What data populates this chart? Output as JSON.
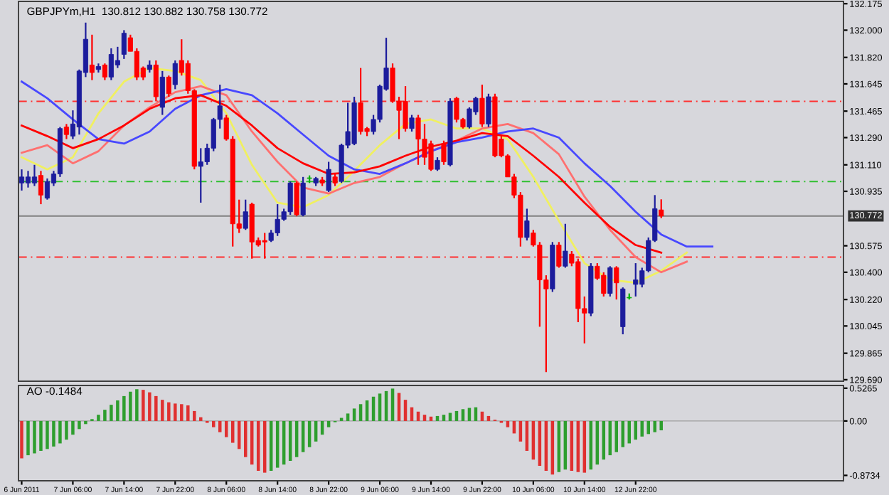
{
  "chart_data": [
    {
      "type": "candlestick",
      "title": "GBPJPYm,H1  130.812 130.882 130.758 130.772",
      "categories": [
        null,
        null,
        null,
        null,
        null,
        null,
        null,
        null,
        null,
        null,
        null,
        null,
        null,
        null,
        null,
        null,
        null,
        null,
        null,
        null,
        null,
        null,
        null,
        null,
        null,
        null,
        null,
        null,
        null,
        null,
        null,
        null,
        null,
        null,
        null,
        null,
        null,
        null,
        null,
        null,
        null,
        null,
        null,
        null,
        null,
        null,
        null,
        null,
        null,
        null,
        null,
        null,
        null,
        null,
        null,
        null,
        null,
        null,
        null,
        null,
        null,
        null,
        null,
        null,
        null,
        null,
        null,
        null,
        null,
        null,
        null,
        null,
        null,
        null,
        null,
        null,
        null,
        null,
        null,
        null,
        null,
        null,
        null,
        null,
        null,
        null,
        null,
        null,
        null,
        null,
        null,
        null,
        null,
        null,
        null,
        null,
        null,
        null,
        null,
        null,
        null,
        null,
        null,
        null,
        null,
        null,
        null,
        null,
        null,
        null,
        null,
        null,
        null,
        null,
        null,
        null,
        null,
        null,
        null,
        null,
        null,
        null,
        null,
        null,
        null,
        null,
        null,
        null,
        null
      ],
      "ohlc": [
        [
          130.99,
          131.08,
          130.94,
          131.03
        ],
        [
          130.99,
          131.07,
          130.96,
          131.03
        ],
        [
          130.99,
          131.11,
          130.97,
          131.03
        ],
        [
          131.04,
          131.07,
          130.85,
          130.91
        ],
        [
          130.89,
          131.02,
          130.88,
          131.0
        ],
        [
          130.99,
          131.07,
          130.97,
          131.05
        ],
        [
          131.05,
          131.36,
          131.03,
          131.35
        ],
        [
          131.36,
          131.38,
          131.28,
          131.31
        ],
        [
          131.3,
          131.47,
          131.28,
          131.38
        ],
        [
          131.36,
          131.74,
          131.31,
          131.73
        ],
        [
          131.72,
          132.05,
          131.69,
          131.94
        ],
        [
          131.77,
          131.97,
          131.67,
          131.72
        ],
        [
          131.74,
          131.78,
          131.72,
          131.76
        ],
        [
          131.77,
          131.78,
          131.67,
          131.69
        ],
        [
          131.69,
          131.88,
          131.67,
          131.84
        ],
        [
          131.77,
          131.89,
          131.75,
          131.8
        ],
        [
          131.84,
          132.0,
          131.81,
          131.98
        ],
        [
          131.95,
          131.97,
          131.86,
          131.86
        ],
        [
          131.86,
          131.88,
          131.67,
          131.69
        ],
        [
          131.75,
          131.76,
          131.67,
          131.69
        ],
        [
          131.74,
          131.8,
          131.72,
          131.77
        ],
        [
          131.77,
          131.8,
          131.53,
          131.56
        ],
        [
          131.49,
          131.73,
          131.44,
          131.69
        ],
        [
          131.69,
          131.7,
          131.56,
          131.58
        ],
        [
          131.64,
          131.8,
          131.61,
          131.78
        ],
        [
          131.8,
          131.94,
          131.7,
          131.72
        ],
        [
          131.78,
          131.8,
          131.58,
          131.6
        ],
        [
          131.6,
          131.61,
          131.08,
          131.1
        ],
        [
          131.1,
          131.22,
          130.86,
          131.13
        ],
        [
          131.13,
          131.25,
          131.11,
          131.22
        ],
        [
          131.22,
          131.42,
          131.2,
          131.41
        ],
        [
          131.41,
          131.64,
          131.35,
          131.5
        ],
        [
          131.42,
          131.44,
          131.27,
          131.28
        ],
        [
          131.28,
          131.3,
          130.57,
          130.72
        ],
        [
          130.72,
          130.88,
          130.66,
          130.69
        ],
        [
          130.69,
          130.88,
          130.68,
          130.8
        ],
        [
          130.85,
          130.86,
          130.49,
          130.6
        ],
        [
          130.61,
          130.63,
          130.57,
          130.58
        ],
        [
          130.61,
          130.66,
          130.49,
          130.6
        ],
        [
          130.61,
          130.68,
          130.6,
          130.66
        ],
        [
          130.66,
          130.85,
          130.64,
          130.75
        ],
        [
          130.75,
          130.82,
          130.74,
          130.8
        ],
        [
          130.8,
          131.0,
          130.78,
          130.99
        ],
        [
          130.99,
          131.0,
          130.77,
          130.78
        ],
        [
          130.78,
          131.03,
          130.77,
          130.99
        ],
        [
          131.02,
          131.04,
          130.99,
          131.02
        ],
        [
          130.99,
          131.03,
          130.97,
          131.02
        ],
        [
          131.01,
          131.03,
          130.97,
          130.99
        ],
        [
          130.94,
          131.13,
          130.93,
          131.08
        ],
        [
          131.03,
          131.05,
          130.97,
          130.99
        ],
        [
          131.0,
          131.25,
          130.99,
          131.24
        ],
        [
          131.24,
          131.52,
          131.22,
          131.33
        ],
        [
          131.25,
          131.56,
          131.24,
          131.52
        ],
        [
          131.52,
          131.75,
          131.31,
          131.33
        ],
        [
          131.35,
          131.36,
          131.3,
          131.33
        ],
        [
          131.33,
          131.44,
          131.31,
          131.41
        ],
        [
          131.41,
          131.64,
          131.39,
          131.63
        ],
        [
          131.61,
          131.95,
          131.6,
          131.75
        ],
        [
          131.75,
          131.78,
          131.52,
          131.53
        ],
        [
          131.53,
          131.56,
          131.28,
          131.47
        ],
        [
          131.53,
          131.63,
          131.33,
          131.35
        ],
        [
          131.35,
          131.44,
          131.33,
          131.42
        ],
        [
          131.42,
          131.44,
          131.11,
          131.28
        ],
        [
          131.28,
          131.38,
          131.11,
          131.16
        ],
        [
          131.25,
          131.27,
          131.07,
          131.08
        ],
        [
          131.08,
          131.16,
          131.07,
          131.14
        ],
        [
          131.25,
          131.27,
          131.11,
          131.13
        ],
        [
          131.11,
          131.55,
          131.1,
          131.53
        ],
        [
          131.55,
          131.56,
          131.39,
          131.41
        ],
        [
          131.41,
          131.42,
          131.35,
          131.36
        ],
        [
          131.36,
          131.49,
          131.35,
          131.48
        ],
        [
          131.46,
          131.56,
          131.44,
          131.55
        ],
        [
          131.55,
          131.64,
          131.36,
          131.38
        ],
        [
          131.38,
          131.58,
          131.36,
          131.56
        ],
        [
          131.56,
          131.58,
          131.16,
          131.17
        ],
        [
          131.28,
          131.3,
          131.16,
          131.17
        ],
        [
          131.17,
          131.18,
          131.03,
          131.03
        ],
        [
          131.03,
          131.05,
          130.89,
          130.91
        ],
        [
          130.91,
          130.93,
          130.57,
          130.63
        ],
        [
          130.63,
          130.82,
          130.61,
          130.74
        ],
        [
          130.66,
          130.68,
          130.57,
          130.58
        ],
        [
          130.58,
          130.6,
          130.04,
          130.35
        ],
        [
          130.35,
          130.38,
          129.74,
          130.29
        ],
        [
          130.29,
          130.6,
          130.27,
          130.58
        ],
        [
          130.58,
          130.6,
          130.43,
          130.44
        ],
        [
          130.44,
          130.72,
          130.43,
          130.54
        ],
        [
          130.52,
          130.54,
          130.44,
          130.46
        ],
        [
          130.47,
          130.49,
          130.07,
          130.16
        ],
        [
          130.16,
          130.24,
          129.93,
          130.13
        ],
        [
          130.13,
          130.46,
          130.11,
          130.44
        ],
        [
          130.44,
          130.46,
          130.35,
          130.36
        ],
        [
          130.38,
          130.4,
          130.24,
          130.26
        ],
        [
          130.26,
          130.44,
          130.24,
          130.43
        ],
        [
          130.43,
          130.44,
          130.22,
          130.33
        ],
        [
          130.04,
          130.3,
          129.99,
          130.29
        ],
        [
          130.23,
          130.26,
          130.22,
          130.23
        ],
        [
          130.32,
          130.46,
          130.24,
          130.35
        ],
        [
          130.32,
          130.43,
          130.3,
          130.41
        ],
        [
          130.41,
          130.63,
          130.4,
          130.61
        ],
        [
          130.61,
          130.91,
          130.6,
          130.82
        ],
        [
          130.812,
          130.882,
          130.758,
          130.772
        ],
        null,
        null,
        null,
        null,
        null,
        null,
        null,
        null,
        null,
        null,
        null,
        null,
        null,
        null,
        null,
        null,
        null,
        null,
        null,
        null,
        null,
        null,
        null,
        null,
        null,
        null,
        null,
        null
      ],
      "colors": [
        "#1c1c9c",
        "#1c1c9c",
        "#1c1c9c",
        "#ff0000",
        "#1c1c9c",
        "#1c1c9c",
        "#1c1c9c",
        "#ff0000",
        "#1c1c9c",
        "#1c1c9c",
        "#1c1c9c",
        "#ff0000",
        "#1c1c9c",
        "#ff0000",
        "#1c1c9c",
        "#1c1c9c",
        "#1c1c9c",
        "#ff0000",
        "#ff0000",
        "#ff0000",
        "#1c1c9c",
        "#ff0000",
        "#1c1c9c",
        "#ff0000",
        "#1c1c9c",
        "#ff0000",
        "#ff0000",
        "#ff0000",
        "#1c1c9c",
        "#1c1c9c",
        "#1c1c9c",
        "#1c1c9c",
        "#ff0000",
        "#ff0000",
        "#ff0000",
        "#1c1c9c",
        "#ff0000",
        "#ff0000",
        "#ff0000",
        "#1c1c9c",
        "#1c1c9c",
        "#1c1c9c",
        "#1c1c9c",
        "#ff0000",
        "#1c1c9c",
        "#00b000",
        "#1c1c9c",
        "#ff0000",
        "#1c1c9c",
        "#ff0000",
        "#1c1c9c",
        "#1c1c9c",
        "#1c1c9c",
        "#ff0000",
        "#ff0000",
        "#1c1c9c",
        "#1c1c9c",
        "#1c1c9c",
        "#ff0000",
        "#ff0000",
        "#ff0000",
        "#1c1c9c",
        "#ff0000",
        "#ff0000",
        "#ff0000",
        "#1c1c9c",
        "#ff0000",
        "#1c1c9c",
        "#ff0000",
        "#ff0000",
        "#1c1c9c",
        "#1c1c9c",
        "#ff0000",
        "#1c1c9c",
        "#ff0000",
        "#ff0000",
        "#ff0000",
        "#ff0000",
        "#ff0000",
        "#1c1c9c",
        "#ff0000",
        "#ff0000",
        "#ff0000",
        "#1c1c9c",
        "#ff0000",
        "#1c1c9c",
        "#ff0000",
        "#ff0000",
        "#ff0000",
        "#1c1c9c",
        "#ff0000",
        "#ff0000",
        "#1c1c9c",
        "#ff0000",
        "#1c1c9c",
        "#00b000",
        "#1c1c9c",
        "#1c1c9c",
        "#1c1c9c",
        "#1c1c9c",
        "#ff0000",
        null,
        null,
        null,
        null,
        null,
        null,
        null,
        null,
        null,
        null,
        null,
        null,
        null,
        null,
        null,
        null,
        null,
        null,
        null,
        null,
        null,
        null,
        null,
        null,
        null,
        null,
        null,
        null
      ],
      "series": [
        {
          "type": "line",
          "color": "#f0f060",
          "values": [
            131.16,
            null,
            null,
            null,
            131.08,
            null,
            null,
            null,
            131.16,
            null,
            null,
            null,
            131.45,
            null,
            null,
            null,
            131.66,
            null,
            null,
            null,
            131.75,
            null,
            null,
            null,
            131.73,
            null,
            null,
            null,
            131.67,
            null,
            null,
            null,
            131.45,
            null,
            null,
            null,
            131.11,
            null,
            null,
            null,
            130.86,
            null,
            null,
            null,
            130.83,
            null,
            null,
            null,
            130.91,
            null,
            null,
            null,
            131.07,
            null,
            null,
            null,
            131.24,
            null,
            null,
            null,
            131.38,
            null,
            null,
            null,
            131.41,
            null,
            null,
            null,
            131.35,
            null,
            null,
            null,
            131.35,
            null,
            null,
            null,
            131.28,
            null,
            null,
            null,
            131.03,
            null,
            null,
            null,
            130.74,
            null,
            null,
            null,
            130.46,
            null,
            null,
            null,
            130.35,
            null,
            null,
            null,
            130.33,
            null,
            null,
            null,
            130.41,
            null,
            null,
            null,
            130.53,
            null,
            null,
            null,
            null,
            null,
            null,
            null,
            null,
            null,
            null,
            null,
            null,
            null,
            null,
            null,
            null,
            null,
            null,
            null,
            null,
            null,
            null,
            null,
            null
          ]
        },
        {
          "type": "line",
          "color": "#ff7070",
          "values": [
            131.19,
            null,
            null,
            null,
            131.24,
            null,
            null,
            null,
            131.12,
            null,
            null,
            null,
            131.2,
            null,
            null,
            null,
            131.37,
            null,
            null,
            null,
            131.49,
            null,
            null,
            null,
            131.59,
            null,
            null,
            null,
            131.63,
            null,
            null,
            null,
            131.57,
            null,
            null,
            null,
            131.33,
            null,
            null,
            null,
            131.13,
            null,
            null,
            null,
            130.96,
            null,
            null,
            null,
            130.92,
            null,
            null,
            null,
            130.99,
            null,
            null,
            null,
            131.03,
            null,
            null,
            null,
            131.12,
            null,
            null,
            null,
            131.2,
            null,
            null,
            null,
            131.27,
            null,
            null,
            null,
            131.35,
            null,
            null,
            null,
            131.38,
            null,
            null,
            null,
            131.32,
            null,
            null,
            null,
            131.18,
            null,
            null,
            null,
            130.9,
            null,
            null,
            null,
            130.68,
            null,
            null,
            null,
            130.5,
            null,
            null,
            null,
            130.4,
            null,
            null,
            null,
            130.47,
            null,
            null,
            null,
            null,
            null,
            null,
            null,
            null,
            null,
            null,
            null,
            null,
            null,
            null,
            null,
            null,
            null,
            null,
            null,
            null,
            null,
            null,
            null,
            null
          ]
        },
        {
          "type": "line",
          "color": "#4848ff",
          "values": [
            131.66,
            null,
            null,
            null,
            131.55,
            null,
            null,
            null,
            131.41,
            null,
            null,
            null,
            131.28,
            null,
            null,
            null,
            131.25,
            null,
            null,
            null,
            131.33,
            null,
            null,
            null,
            131.48,
            null,
            null,
            null,
            131.57,
            null,
            null,
            null,
            131.61,
            null,
            null,
            null,
            131.57,
            null,
            null,
            null,
            131.45,
            null,
            null,
            null,
            131.31,
            null,
            null,
            null,
            131.17,
            null,
            null,
            null,
            131.08,
            null,
            null,
            null,
            131.05,
            null,
            null,
            null,
            131.12,
            null,
            null,
            null,
            131.2,
            null,
            null,
            null,
            131.26,
            null,
            null,
            null,
            131.29,
            null,
            null,
            null,
            131.33,
            null,
            null,
            null,
            131.35,
            null,
            null,
            null,
            131.29,
            null,
            null,
            null,
            131.12,
            null,
            null,
            null,
            130.97,
            null,
            null,
            null,
            130.8,
            null,
            null,
            null,
            130.65,
            null,
            null,
            null,
            130.57,
            null,
            null,
            null,
            130.57,
            null,
            null,
            null,
            null,
            null,
            null,
            null,
            null,
            null,
            null,
            null,
            null,
            null,
            null,
            null,
            null,
            null,
            null,
            null,
            null
          ]
        },
        {
          "type": "line",
          "color": "#ff0000",
          "values": [
            131.37,
            null,
            null,
            null,
            131.3,
            null,
            null,
            null,
            131.22,
            null,
            null,
            null,
            131.28,
            null,
            null,
            null,
            131.37,
            null,
            null,
            null,
            131.48,
            null,
            null,
            null,
            131.55,
            null,
            null,
            null,
            131.57,
            null,
            null,
            null,
            131.5,
            null,
            null,
            null,
            131.37,
            null,
            null,
            null,
            131.22,
            null,
            null,
            null,
            131.12,
            null,
            null,
            null,
            131.05,
            null,
            null,
            null,
            131.06,
            null,
            null,
            null,
            131.1,
            null,
            null,
            null,
            131.17,
            null,
            null,
            null,
            131.23,
            null,
            null,
            null,
            131.27,
            null,
            null,
            null,
            131.32,
            null,
            null,
            null,
            131.3,
            null,
            null,
            null,
            131.17,
            null,
            null,
            null,
            131.03,
            null,
            null,
            null,
            130.86,
            null,
            null,
            null,
            130.7,
            null,
            null,
            null,
            130.58,
            null,
            null,
            null,
            130.53,
            null,
            null,
            null,
            null,
            null,
            null,
            null,
            null,
            null,
            null,
            null,
            null,
            null,
            null,
            null,
            null,
            null,
            null,
            null,
            null,
            null,
            null,
            null,
            null,
            null,
            null,
            null,
            null
          ]
        }
      ],
      "ref_lines": [
        {
          "axis": "y",
          "value": 131.53,
          "color": "#ff3030",
          "line_style": "dashed"
        },
        {
          "axis": "y",
          "value": 131.0,
          "color": "#30c030",
          "line_style": "dashed"
        },
        {
          "axis": "y",
          "value": 130.5,
          "color": "#ff3030",
          "line_style": "dashed"
        },
        {
          "axis": "y",
          "value": 130.772,
          "label": "130.772",
          "color": "#808080",
          "line_style": "solid"
        }
      ],
      "ylim": [
        129.68,
        132.19
      ],
      "yticks": [
        132.175,
        {
          "value": 132.0,
          "label": "132.000"
        },
        {
          "value": 131.82,
          "label": "131.820"
        },
        131.645,
        131.465,
        {
          "value": 131.29,
          "label": "131.290"
        },
        {
          "value": 131.11,
          "label": "131.110"
        },
        130.935,
        130.575,
        {
          "value": 130.4,
          "label": "130.400"
        },
        {
          "value": 130.22,
          "label": "130.220"
        },
        130.045,
        129.865,
        {
          "value": 129.69,
          "label": "129.690"
        }
      ],
      "tick_labels": "y"
    },
    {
      "type": "bar",
      "title": "AO -0.1484",
      "categories": [
        "6 Jun 2011",
        null,
        null,
        null,
        null,
        null,
        null,
        null,
        "7 Jun 06:00",
        null,
        null,
        null,
        null,
        null,
        null,
        null,
        "7 Jun 14:00",
        null,
        null,
        null,
        null,
        null,
        null,
        null,
        "7 Jun 22:00",
        null,
        null,
        null,
        null,
        null,
        null,
        null,
        "8 Jun 06:00",
        null,
        null,
        null,
        null,
        null,
        null,
        null,
        "8 Jun 14:00",
        null,
        null,
        null,
        null,
        null,
        null,
        null,
        "8 Jun 22:00",
        null,
        null,
        null,
        null,
        null,
        null,
        null,
        "9 Jun 06:00",
        null,
        null,
        null,
        null,
        null,
        null,
        null,
        "9 Jun 14:00",
        null,
        null,
        null,
        null,
        null,
        null,
        null,
        "9 Jun 22:00",
        null,
        null,
        null,
        null,
        null,
        null,
        null,
        "10 Jun 06:00",
        null,
        null,
        null,
        null,
        null,
        null,
        null,
        "10 Jun 14:00",
        null,
        null,
        null,
        null,
        null,
        null,
        null,
        "12 Jun 22:00",
        null,
        null,
        null,
        null,
        null,
        null,
        null,
        null,
        null,
        null,
        null,
        null,
        null,
        null,
        null,
        null,
        null,
        null,
        null,
        null,
        null,
        null,
        null,
        null,
        null,
        null,
        null,
        null,
        null,
        null,
        null,
        null
      ],
      "values": [
        -0.6,
        -0.55,
        -0.52,
        -0.48,
        -0.45,
        -0.41,
        -0.36,
        -0.3,
        -0.22,
        -0.13,
        -0.05,
        0.03,
        0.1,
        0.18,
        0.26,
        0.33,
        0.4,
        0.47,
        0.51,
        0.5,
        0.46,
        0.4,
        0.34,
        0.3,
        0.28,
        0.27,
        0.25,
        0.16,
        0.06,
        -0.03,
        -0.1,
        -0.18,
        -0.26,
        -0.35,
        -0.45,
        -0.58,
        -0.7,
        -0.8,
        -0.83,
        -0.8,
        -0.75,
        -0.7,
        -0.64,
        -0.58,
        -0.5,
        -0.42,
        -0.33,
        -0.22,
        -0.1,
        -0.02,
        0.05,
        0.12,
        0.2,
        0.27,
        0.33,
        0.39,
        0.44,
        0.48,
        0.52,
        0.45,
        0.34,
        0.22,
        0.15,
        0.1,
        0.07,
        0.08,
        0.1,
        0.13,
        0.16,
        0.19,
        0.21,
        0.22,
        0.15,
        0.08,
        0.02,
        -0.03,
        -0.1,
        -0.2,
        -0.33,
        -0.48,
        -0.62,
        -0.72,
        -0.8,
        -0.86,
        -0.82,
        -0.78,
        -0.8,
        -0.82,
        -0.83,
        -0.78,
        -0.7,
        -0.62,
        -0.55,
        -0.5,
        -0.42,
        -0.36,
        -0.3,
        -0.25,
        -0.21,
        -0.18,
        -0.15,
        null,
        null,
        null,
        null,
        null,
        null,
        null,
        null,
        null,
        null,
        null,
        null,
        null,
        null,
        null,
        null,
        null,
        null,
        null,
        null,
        null,
        null,
        null,
        null,
        null,
        null,
        null,
        null
      ],
      "colors": [
        "#e03030",
        "#2e9e2e",
        "#2e9e2e",
        "#2e9e2e",
        "#2e9e2e",
        "#2e9e2e",
        "#2e9e2e",
        "#2e9e2e",
        "#2e9e2e",
        "#2e9e2e",
        "#2e9e2e",
        "#2e9e2e",
        "#2e9e2e",
        "#2e9e2e",
        "#2e9e2e",
        "#2e9e2e",
        "#2e9e2e",
        "#2e9e2e",
        "#2e9e2e",
        "#e03030",
        "#e03030",
        "#e03030",
        "#e03030",
        "#e03030",
        "#e03030",
        "#e03030",
        "#e03030",
        "#e03030",
        "#e03030",
        "#e03030",
        "#e03030",
        "#e03030",
        "#e03030",
        "#e03030",
        "#e03030",
        "#e03030",
        "#e03030",
        "#e03030",
        "#e03030",
        "#2e9e2e",
        "#2e9e2e",
        "#2e9e2e",
        "#2e9e2e",
        "#2e9e2e",
        "#2e9e2e",
        "#2e9e2e",
        "#2e9e2e",
        "#2e9e2e",
        "#2e9e2e",
        "#2e9e2e",
        "#2e9e2e",
        "#2e9e2e",
        "#2e9e2e",
        "#2e9e2e",
        "#2e9e2e",
        "#2e9e2e",
        "#2e9e2e",
        "#2e9e2e",
        "#2e9e2e",
        "#e03030",
        "#e03030",
        "#e03030",
        "#e03030",
        "#e03030",
        "#e03030",
        "#2e9e2e",
        "#2e9e2e",
        "#2e9e2e",
        "#2e9e2e",
        "#2e9e2e",
        "#2e9e2e",
        "#2e9e2e",
        "#e03030",
        "#e03030",
        "#e03030",
        "#e03030",
        "#e03030",
        "#e03030",
        "#e03030",
        "#e03030",
        "#e03030",
        "#e03030",
        "#e03030",
        "#e03030",
        "#2e9e2e",
        "#2e9e2e",
        "#e03030",
        "#e03030",
        "#e03030",
        "#2e9e2e",
        "#2e9e2e",
        "#2e9e2e",
        "#2e9e2e",
        "#2e9e2e",
        "#2e9e2e",
        "#2e9e2e",
        "#2e9e2e",
        "#2e9e2e",
        "#2e9e2e",
        "#2e9e2e",
        "#2e9e2e",
        null,
        null,
        null,
        null,
        null,
        null,
        null,
        null,
        null,
        null,
        null,
        null,
        null,
        null,
        null,
        null,
        null,
        null,
        null,
        null,
        null,
        null,
        null,
        null,
        null,
        null,
        null,
        null
      ],
      "ylim": [
        -0.96,
        0.57
      ],
      "yticks": [
        0.5265,
        {
          "value": 0,
          "label": "0.00"
        },
        -0.8734
      ]
    }
  ]
}
